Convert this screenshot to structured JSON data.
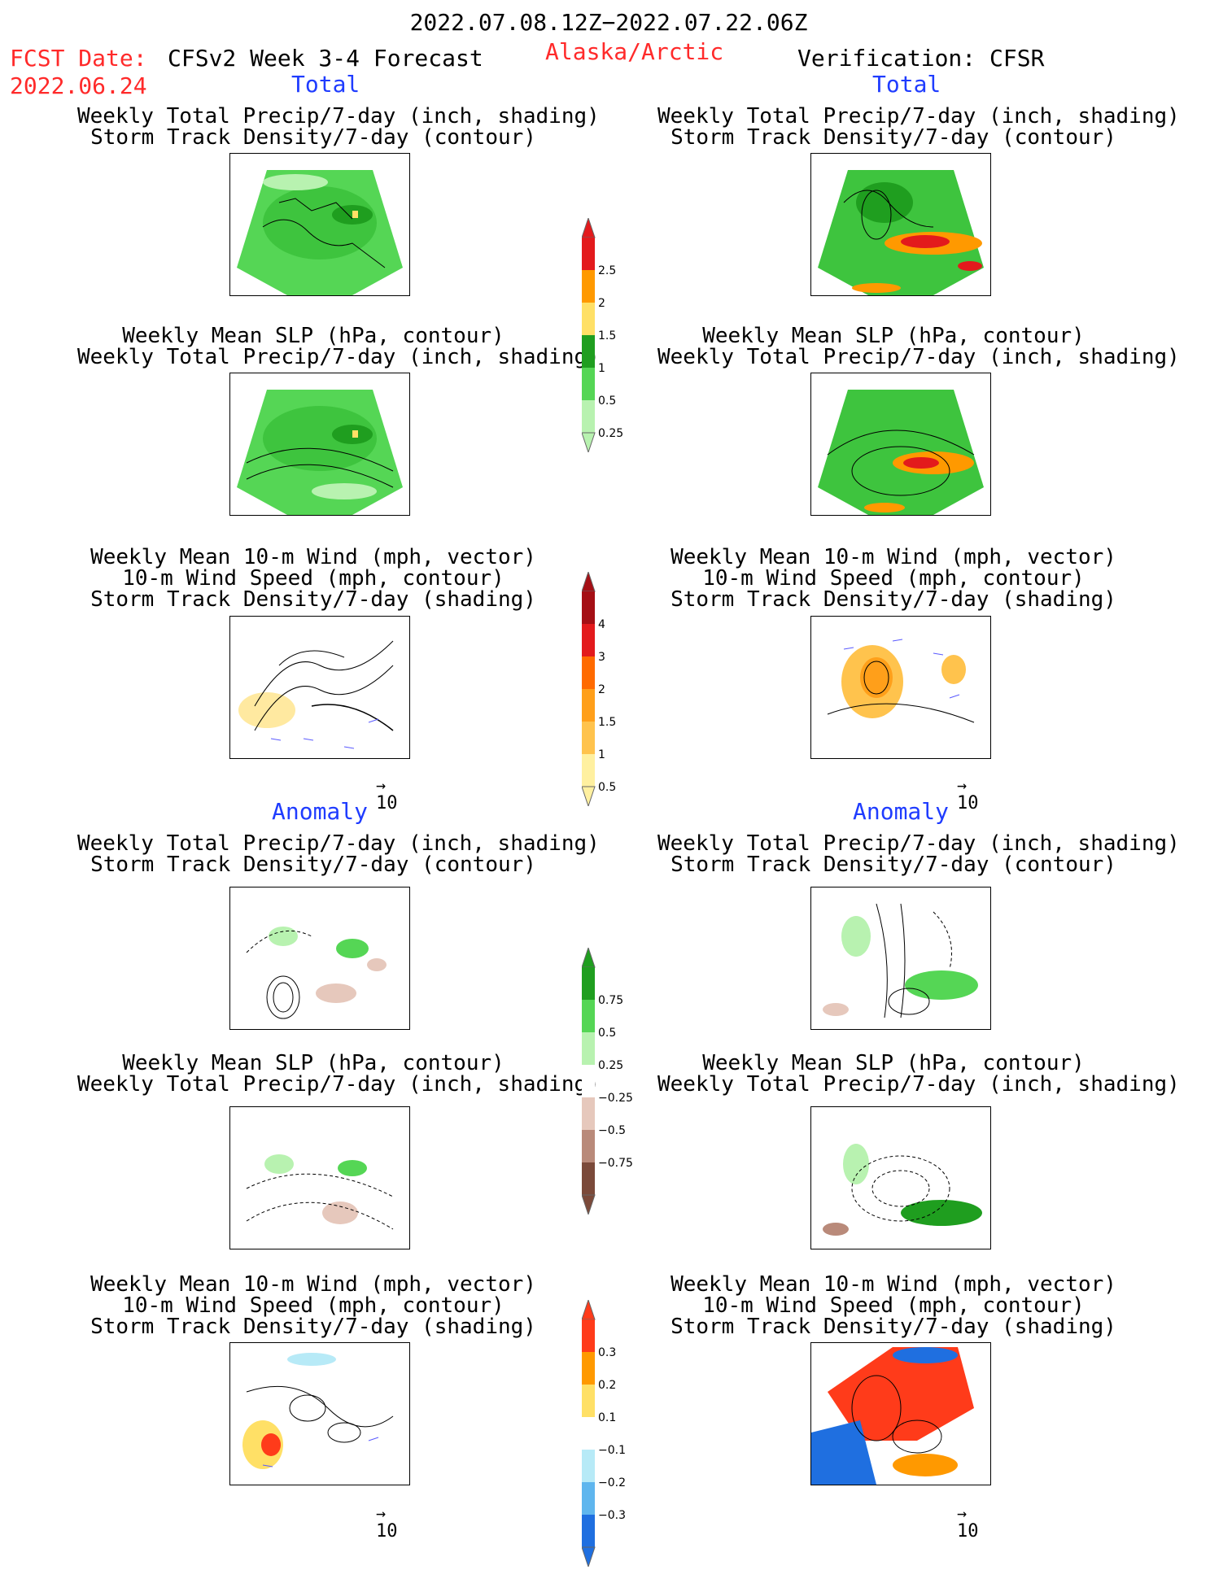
{
  "header": {
    "date_range": "2022.07.08.12Z−2022.07.22.06Z",
    "fcst_label": "FCST Date:",
    "fcst_date": "2022.06.24",
    "model": "CFSv2 Week 3-4 Forecast",
    "region": "Alaska/Arctic",
    "verification": "Verification: CFSR"
  },
  "sections": {
    "total": "Total",
    "anomaly": "Anomaly"
  },
  "titles": {
    "precip_storm": [
      "Weekly Total Precip/7-day (inch, shading)",
      "Storm Track Density/7-day (contour)"
    ],
    "slp_precip": [
      "Weekly Mean SLP (hPa, contour)",
      "Weekly Total Precip/7-day (inch, shading)"
    ],
    "wind_storm": [
      "Weekly Mean 10-m Wind (mph, vector)",
      "10-m Wind Speed (mph, contour)",
      "Storm Track Density/7-day (shading)"
    ]
  },
  "vector_ref": "10",
  "colorbars": {
    "precip_total": {
      "labels": [
        "2.5",
        "2",
        "1.5",
        "1",
        "0.5",
        "0.25"
      ],
      "colors": [
        "#e31a1c",
        "#ff9900",
        "#ffe066",
        "#1f9e1f",
        "#55d655",
        "#b8f2b0"
      ]
    },
    "storm_total": {
      "labels": [
        "4",
        "3",
        "2",
        "1.5",
        "1",
        "0.5"
      ],
      "colors": [
        "#a50f15",
        "#e31a1c",
        "#ff6a00",
        "#ff9f1a",
        "#ffc34d",
        "#fff0a0"
      ]
    },
    "precip_anom": {
      "labels": [
        "0.75",
        "0.5",
        "0.25",
        "−0.25",
        "−0.5",
        "−0.75"
      ],
      "colors": [
        "#1f9e1f",
        "#55d655",
        "#b8f2b0",
        "#ffffff",
        "#e6c8bc",
        "#b98a7a",
        "#7b4a3a"
      ]
    },
    "storm_anom": {
      "labels": [
        "0.3",
        "0.2",
        "0.1",
        "−0.1",
        "−0.2",
        "−0.3"
      ],
      "colors": [
        "#ff3b1a",
        "#ff9900",
        "#ffe066",
        "#ffffff",
        "#b7eaf7",
        "#5fb6ee",
        "#1f6fe0"
      ]
    },
    "colors_main": {
      "title": "#000000",
      "red": "#ff2a2a",
      "blue": "#1f3cff"
    }
  }
}
